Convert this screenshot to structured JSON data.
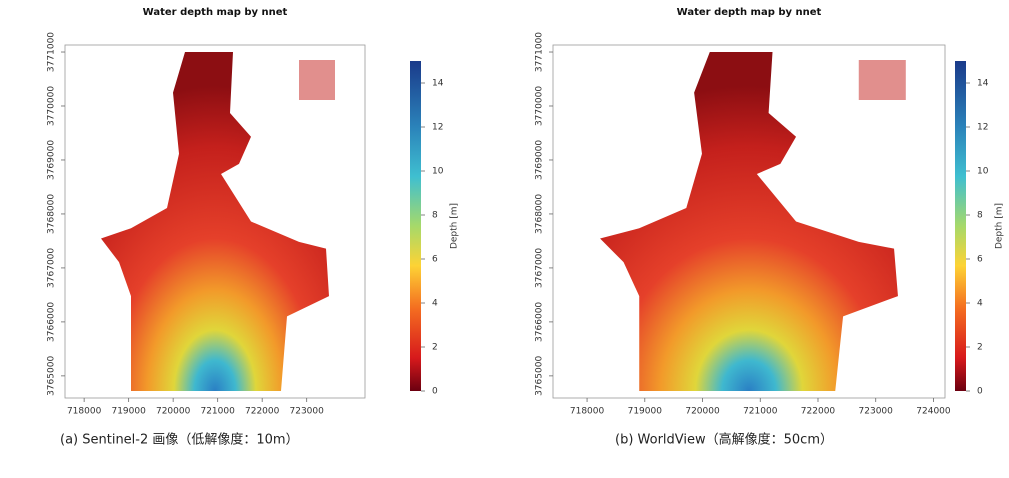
{
  "chart_data": [
    {
      "type": "heatmap",
      "title": "Water depth map by nnet",
      "xlim": [
        717570,
        724310
      ],
      "ylim": [
        3764590,
        3771130
      ],
      "xticks": [
        718000,
        719000,
        720000,
        721000,
        722000,
        723000
      ],
      "yticks": [
        3765000,
        3766000,
        3767000,
        3768000,
        3769000,
        3770000,
        3771000
      ],
      "colorbar_label": "Depth [m]",
      "clim": [
        0,
        15
      ],
      "colorbar_ticks": [
        0,
        2,
        4,
        6,
        8,
        10,
        12,
        14
      ],
      "caption": "(a) Sentinel-2 画像（低解像度：10m）"
    },
    {
      "type": "heatmap",
      "title": "Water depth map by nnet",
      "xlim": [
        717410,
        724200
      ],
      "ylim": [
        3764590,
        3771130
      ],
      "xticks": [
        718000,
        719000,
        720000,
        721000,
        722000,
        723000,
        724000
      ],
      "yticks": [
        3765000,
        3766000,
        3767000,
        3768000,
        3769000,
        3770000,
        3771000
      ],
      "colorbar_label": "Depth [m]",
      "clim": [
        0,
        15
      ],
      "colorbar_ticks": [
        0,
        2,
        4,
        6,
        8,
        10,
        12,
        14
      ],
      "caption": "(b) WorldView（高解像度：50cm）"
    }
  ]
}
